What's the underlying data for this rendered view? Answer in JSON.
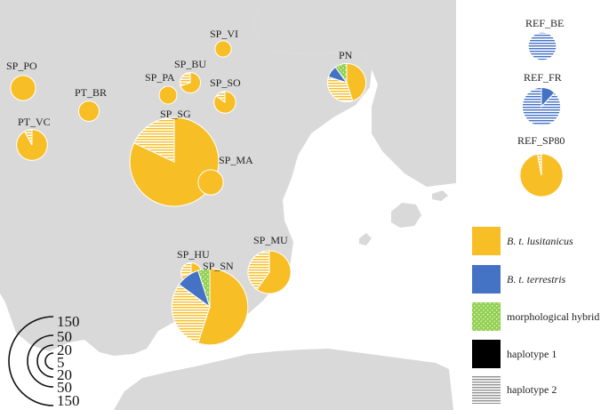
{
  "colors": {
    "lusitanicus": "#f7be26",
    "terrestris": "#4472c4",
    "hybrid": "#92d050",
    "haplotype1": "#000000",
    "haplotype2": "#b0b0b0",
    "land": "#d9d9d9",
    "sea": "#ffffff"
  },
  "legend": {
    "items": [
      {
        "label": "B. t. lusitanicus",
        "italic": true,
        "swatch": "lusitanicus"
      },
      {
        "label": "B. t. terrestris",
        "italic": true,
        "swatch": "terrestris"
      },
      {
        "label": "morphological hybrid",
        "italic": false,
        "swatch": "hybrid"
      },
      {
        "label": "haplotype 1",
        "italic": false,
        "swatch": "haplotype1"
      },
      {
        "label": "haplotype 2",
        "italic": false,
        "swatch": "haplotype2"
      }
    ]
  },
  "scale": {
    "labels": [
      "150",
      "50",
      "20",
      "5",
      "20",
      "50",
      "150"
    ]
  },
  "sites": [
    {
      "name": "SP_VI",
      "n": 5,
      "lusitanicus": 1.0,
      "terrestris": 0,
      "hybrid": 0,
      "hap2_fraction": 0
    },
    {
      "name": "SP_PO",
      "n": 12,
      "lusitanicus": 1.0,
      "terrestris": 0,
      "hybrid": 0,
      "hap2_fraction": 0
    },
    {
      "name": "SP_BU",
      "n": 8,
      "lusitanicus": 1.0,
      "terrestris": 0,
      "hybrid": 0,
      "hap2_fraction": 0.3
    },
    {
      "name": "SP_PA",
      "n": 6,
      "lusitanicus": 1.0,
      "terrestris": 0,
      "hybrid": 0,
      "hap2_fraction": 0
    },
    {
      "name": "PT_BR",
      "n": 8,
      "lusitanicus": 1.0,
      "terrestris": 0,
      "hybrid": 0,
      "hap2_fraction": 0
    },
    {
      "name": "SP_SO",
      "n": 9,
      "lusitanicus": 1.0,
      "terrestris": 0,
      "hybrid": 0,
      "hap2_fraction": 0.15
    },
    {
      "name": "PN",
      "n": 28,
      "lusitanicus": 0.8,
      "terrestris": 0.1,
      "hybrid": 0.1,
      "hap2_fraction": 0.35
    },
    {
      "name": "PT_VC",
      "n": 18,
      "lusitanicus": 1.0,
      "terrestris": 0,
      "hybrid": 0,
      "hap2_fraction": 0.08
    },
    {
      "name": "SP_SG",
      "n": 150,
      "lusitanicus": 1.0,
      "terrestris": 0,
      "hybrid": 0,
      "hap2_fraction": 0.18
    },
    {
      "name": "SP_MA",
      "n": 12,
      "lusitanicus": 1.0,
      "terrestris": 0,
      "hybrid": 0,
      "hap2_fraction": 0
    },
    {
      "name": "SP_MU",
      "n": 35,
      "lusitanicus": 1.0,
      "terrestris": 0,
      "hybrid": 0,
      "hap2_fraction": 0.4
    },
    {
      "name": "SP_HU",
      "n": 8,
      "lusitanicus": 1.0,
      "terrestris": 0,
      "hybrid": 0,
      "hap2_fraction": 0.3
    },
    {
      "name": "SP_SN",
      "n": 110,
      "lusitanicus": 0.85,
      "terrestris": 0.1,
      "hybrid": 0.05,
      "hap2_fraction": 0.3
    },
    {
      "name": "REF_BE",
      "n": 15,
      "lusitanicus": 0,
      "terrestris": 1.0,
      "hybrid": 0,
      "hap2_fraction": 1.0
    },
    {
      "name": "REF_FR",
      "n": 28,
      "lusitanicus": 0,
      "terrestris": 1.0,
      "hybrid": 0,
      "hap2_fraction": 0.88
    },
    {
      "name": "REF_SP80",
      "n": 35,
      "lusitanicus": 1.0,
      "terrestris": 0,
      "hybrid": 0,
      "hap2_fraction": 0.03
    }
  ]
}
